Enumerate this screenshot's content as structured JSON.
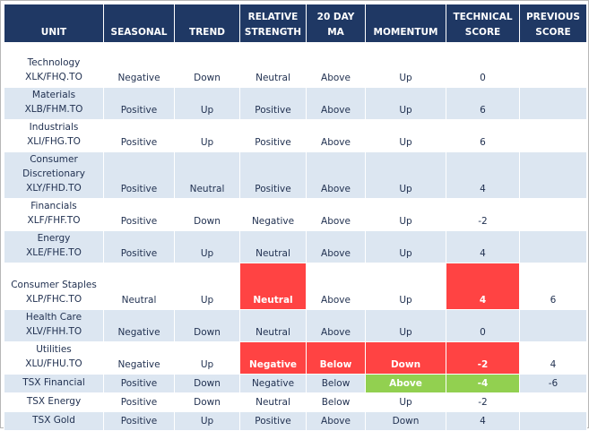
{
  "headers": [
    {
      "line1": "",
      "line2": "UNIT"
    },
    {
      "line1": "",
      "line2": "SEASONAL"
    },
    {
      "line1": "",
      "line2": "TREND"
    },
    {
      "line1": "RELATIVE",
      "line2": "STRENGTH"
    },
    {
      "line1": "20 DAY",
      "line2": "MA"
    },
    {
      "line1": "",
      "line2": "MOMENTUM"
    },
    {
      "line1": "TECHNICAL",
      "line2": "SCORE"
    },
    {
      "line1": "PREVIOUS",
      "line2": "SCORE"
    }
  ],
  "rows": [
    {
      "unit_lines": [
        "Technology",
        "XLK/FHQ.TO"
      ],
      "seasonal": "Negative",
      "trend": "Down",
      "relative_strength": "Neutral",
      "ma20": "Above",
      "momentum": "Up",
      "technical_score": "0",
      "previous_score": "",
      "highlights": {}
    },
    {
      "unit_lines": [
        "Materials",
        "XLB/FHM.TO"
      ],
      "seasonal": "Positive",
      "trend": "Up",
      "relative_strength": "Positive",
      "ma20": "Above",
      "momentum": "Up",
      "technical_score": "6",
      "previous_score": "",
      "highlights": {}
    },
    {
      "unit_lines": [
        "Industrials",
        "XLI/FHG.TO"
      ],
      "seasonal": "Positive",
      "trend": "Up",
      "relative_strength": "Positive",
      "ma20": "Above",
      "momentum": "Up",
      "technical_score": "6",
      "previous_score": "",
      "highlights": {}
    },
    {
      "unit_lines": [
        "Consumer",
        "Discretionary",
        "XLY/FHD.TO"
      ],
      "seasonal": "Positive",
      "trend": "Neutral",
      "relative_strength": "Positive",
      "ma20": "Above",
      "momentum": "Up",
      "technical_score": "4",
      "previous_score": "",
      "highlights": {}
    },
    {
      "unit_lines": [
        "Financials",
        "XLF/FHF.TO"
      ],
      "seasonal": "Positive",
      "trend": "Down",
      "relative_strength": "Negative",
      "ma20": "Above",
      "momentum": "Up",
      "technical_score": "-2",
      "previous_score": "",
      "highlights": {}
    },
    {
      "unit_lines": [
        "Energy",
        "XLE/FHE.TO"
      ],
      "seasonal": "Positive",
      "trend": "Up",
      "relative_strength": "Neutral",
      "ma20": "Above",
      "momentum": "Up",
      "technical_score": "4",
      "previous_score": "",
      "highlights": {}
    },
    {
      "unit_lines": [
        "Consumer Staples",
        "XLP/FHC.TO"
      ],
      "seasonal": "Neutral",
      "trend": "Up",
      "relative_strength": "Neutral",
      "ma20": "Above",
      "momentum": "Up",
      "technical_score": "4",
      "previous_score": "6",
      "highlights": {
        "relative_strength": "red",
        "technical_score": "red"
      }
    },
    {
      "unit_lines": [
        "Health Care",
        "XLV/FHH.TO"
      ],
      "seasonal": "Negative",
      "trend": "Down",
      "relative_strength": "Neutral",
      "ma20": "Above",
      "momentum": "Up",
      "technical_score": "0",
      "previous_score": "",
      "highlights": {}
    },
    {
      "unit_lines": [
        "Utilities",
        "XLU/FHU.TO"
      ],
      "seasonal": "Negative",
      "trend": "Up",
      "relative_strength": "Negative",
      "ma20": "Below",
      "momentum": "Down",
      "technical_score": "-2",
      "previous_score": "4",
      "highlights": {
        "relative_strength": "red",
        "ma20": "red",
        "momentum": "red",
        "technical_score": "red"
      }
    },
    {
      "unit_lines": [
        "TSX Financial"
      ],
      "seasonal": "Positive",
      "trend": "Down",
      "relative_strength": "Negative",
      "ma20": "Below",
      "momentum": "Above",
      "technical_score": "-4",
      "previous_score": "-6",
      "highlights": {
        "momentum": "green",
        "technical_score": "green"
      }
    },
    {
      "unit_lines": [
        "TSX Energy"
      ],
      "seasonal": "Positive",
      "trend": "Down",
      "relative_strength": "Neutral",
      "ma20": "Below",
      "momentum": "Up",
      "technical_score": "-2",
      "previous_score": "",
      "highlights": {}
    },
    {
      "unit_lines": [
        "TSX Gold"
      ],
      "seasonal": "Positive",
      "trend": "Up",
      "relative_strength": "Positive",
      "ma20": "Above",
      "momentum": "Down",
      "technical_score": "4",
      "previous_score": "",
      "highlights": {}
    }
  ],
  "colors": {
    "header_bg": "#1f3864",
    "band_alt": "#dce6f1",
    "highlight_red": "#ff4343",
    "highlight_green": "#92d050",
    "text": "#1f2f4f"
  }
}
